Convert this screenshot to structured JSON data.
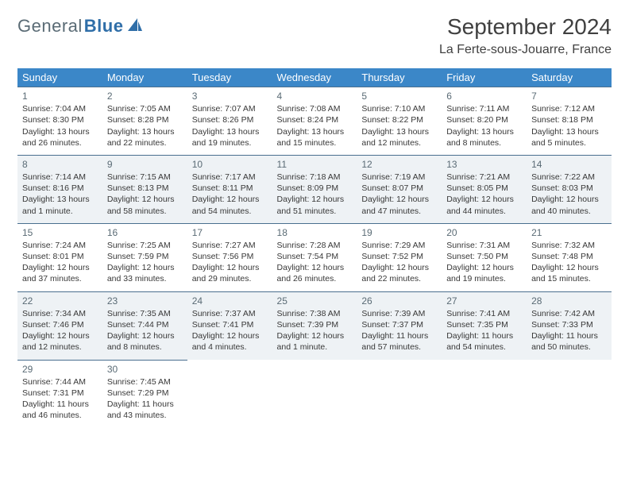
{
  "logo": {
    "text1": "General",
    "text2": "Blue"
  },
  "title": "September 2024",
  "location": "La Ferte-sous-Jouarre, France",
  "colors": {
    "header_bg": "#3b87c8",
    "header_text": "#ffffff",
    "body_text": "#383838",
    "alt_row_bg": "#eef2f5",
    "rule": "#4a6f8f",
    "logo_gray": "#5a6b75",
    "logo_blue": "#2f6ea8"
  },
  "dayNames": [
    "Sunday",
    "Monday",
    "Tuesday",
    "Wednesday",
    "Thursday",
    "Friday",
    "Saturday"
  ],
  "weeks": [
    [
      {
        "n": "1",
        "sr": "7:04 AM",
        "ss": "8:30 PM",
        "dl": "13 hours and 26 minutes."
      },
      {
        "n": "2",
        "sr": "7:05 AM",
        "ss": "8:28 PM",
        "dl": "13 hours and 22 minutes."
      },
      {
        "n": "3",
        "sr": "7:07 AM",
        "ss": "8:26 PM",
        "dl": "13 hours and 19 minutes."
      },
      {
        "n": "4",
        "sr": "7:08 AM",
        "ss": "8:24 PM",
        "dl": "13 hours and 15 minutes."
      },
      {
        "n": "5",
        "sr": "7:10 AM",
        "ss": "8:22 PM",
        "dl": "13 hours and 12 minutes."
      },
      {
        "n": "6",
        "sr": "7:11 AM",
        "ss": "8:20 PM",
        "dl": "13 hours and 8 minutes."
      },
      {
        "n": "7",
        "sr": "7:12 AM",
        "ss": "8:18 PM",
        "dl": "13 hours and 5 minutes."
      }
    ],
    [
      {
        "n": "8",
        "sr": "7:14 AM",
        "ss": "8:16 PM",
        "dl": "13 hours and 1 minute."
      },
      {
        "n": "9",
        "sr": "7:15 AM",
        "ss": "8:13 PM",
        "dl": "12 hours and 58 minutes."
      },
      {
        "n": "10",
        "sr": "7:17 AM",
        "ss": "8:11 PM",
        "dl": "12 hours and 54 minutes."
      },
      {
        "n": "11",
        "sr": "7:18 AM",
        "ss": "8:09 PM",
        "dl": "12 hours and 51 minutes."
      },
      {
        "n": "12",
        "sr": "7:19 AM",
        "ss": "8:07 PM",
        "dl": "12 hours and 47 minutes."
      },
      {
        "n": "13",
        "sr": "7:21 AM",
        "ss": "8:05 PM",
        "dl": "12 hours and 44 minutes."
      },
      {
        "n": "14",
        "sr": "7:22 AM",
        "ss": "8:03 PM",
        "dl": "12 hours and 40 minutes."
      }
    ],
    [
      {
        "n": "15",
        "sr": "7:24 AM",
        "ss": "8:01 PM",
        "dl": "12 hours and 37 minutes."
      },
      {
        "n": "16",
        "sr": "7:25 AM",
        "ss": "7:59 PM",
        "dl": "12 hours and 33 minutes."
      },
      {
        "n": "17",
        "sr": "7:27 AM",
        "ss": "7:56 PM",
        "dl": "12 hours and 29 minutes."
      },
      {
        "n": "18",
        "sr": "7:28 AM",
        "ss": "7:54 PM",
        "dl": "12 hours and 26 minutes."
      },
      {
        "n": "19",
        "sr": "7:29 AM",
        "ss": "7:52 PM",
        "dl": "12 hours and 22 minutes."
      },
      {
        "n": "20",
        "sr": "7:31 AM",
        "ss": "7:50 PM",
        "dl": "12 hours and 19 minutes."
      },
      {
        "n": "21",
        "sr": "7:32 AM",
        "ss": "7:48 PM",
        "dl": "12 hours and 15 minutes."
      }
    ],
    [
      {
        "n": "22",
        "sr": "7:34 AM",
        "ss": "7:46 PM",
        "dl": "12 hours and 12 minutes."
      },
      {
        "n": "23",
        "sr": "7:35 AM",
        "ss": "7:44 PM",
        "dl": "12 hours and 8 minutes."
      },
      {
        "n": "24",
        "sr": "7:37 AM",
        "ss": "7:41 PM",
        "dl": "12 hours and 4 minutes."
      },
      {
        "n": "25",
        "sr": "7:38 AM",
        "ss": "7:39 PM",
        "dl": "12 hours and 1 minute."
      },
      {
        "n": "26",
        "sr": "7:39 AM",
        "ss": "7:37 PM",
        "dl": "11 hours and 57 minutes."
      },
      {
        "n": "27",
        "sr": "7:41 AM",
        "ss": "7:35 PM",
        "dl": "11 hours and 54 minutes."
      },
      {
        "n": "28",
        "sr": "7:42 AM",
        "ss": "7:33 PM",
        "dl": "11 hours and 50 minutes."
      }
    ],
    [
      {
        "n": "29",
        "sr": "7:44 AM",
        "ss": "7:31 PM",
        "dl": "11 hours and 46 minutes."
      },
      {
        "n": "30",
        "sr": "7:45 AM",
        "ss": "7:29 PM",
        "dl": "11 hours and 43 minutes."
      },
      null,
      null,
      null,
      null,
      null
    ]
  ],
  "labels": {
    "sunrise": "Sunrise:",
    "sunset": "Sunset:",
    "daylight": "Daylight:"
  }
}
